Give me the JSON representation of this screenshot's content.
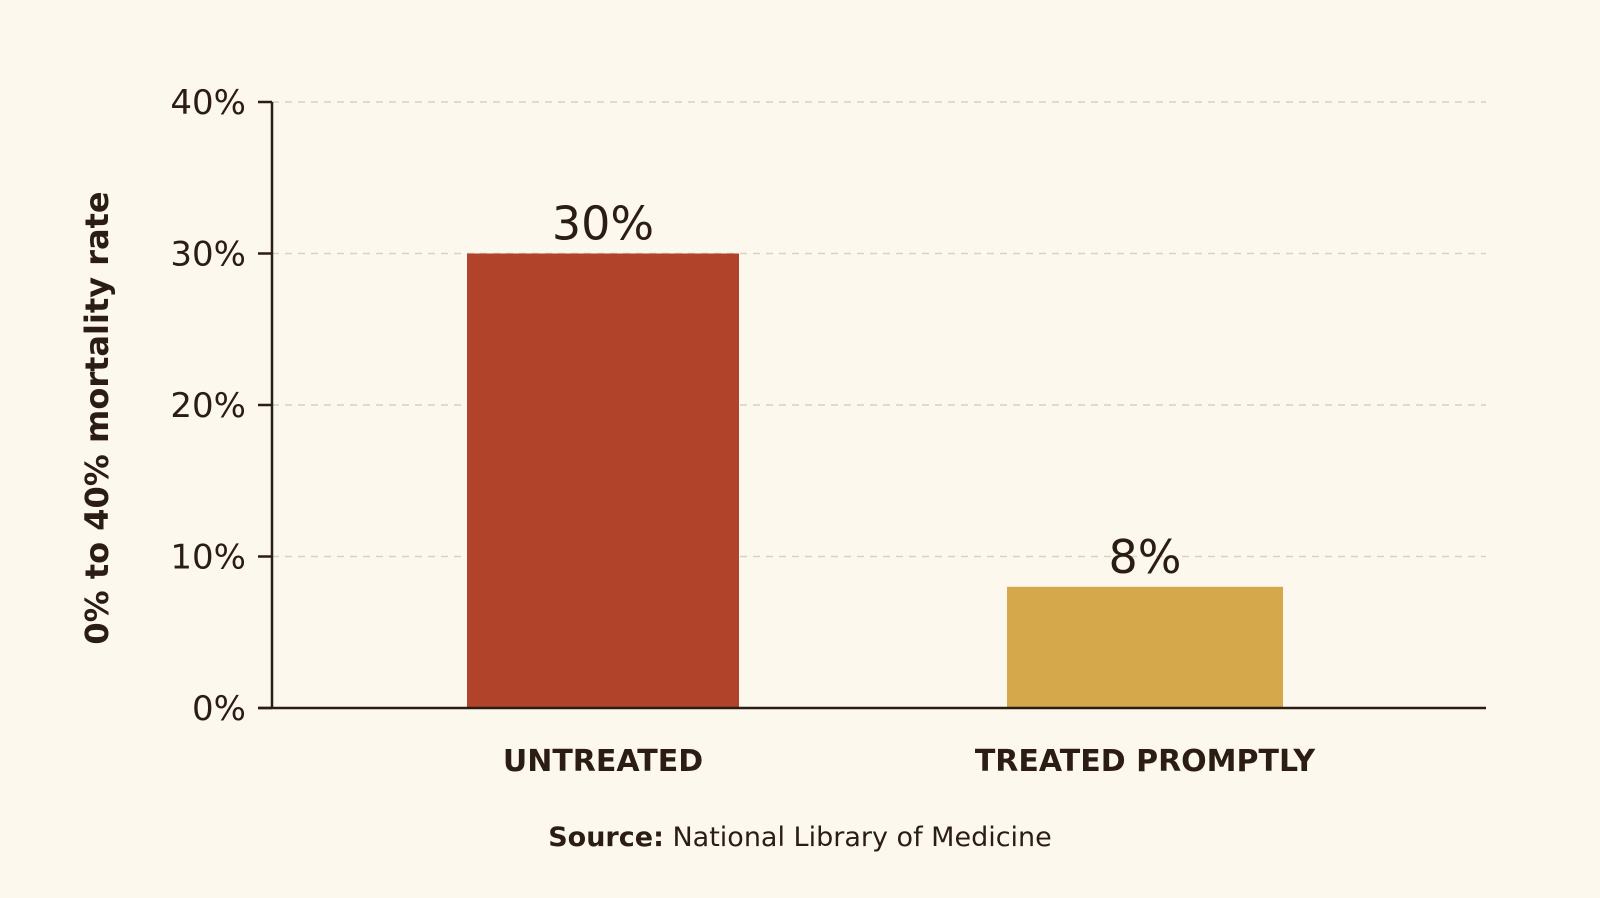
{
  "chart_data": {
    "type": "bar",
    "categories": [
      "UNTREATED",
      "TREATED PROMPTLY"
    ],
    "values": [
      30,
      8
    ],
    "data_labels": [
      "30%",
      "8%"
    ],
    "colors": [
      "#b2432b",
      "#d4a84b"
    ],
    "ylabel": "0% to 40% mortality rate",
    "xlabel": "",
    "title": "",
    "ylim": [
      0,
      40
    ],
    "yticks": [
      0,
      10,
      20,
      30,
      40
    ],
    "ytick_labels": [
      "0%",
      "10%",
      "20%",
      "30%",
      "40%"
    ],
    "grid": true,
    "legend": "none"
  },
  "source": {
    "key": "Source:",
    "value": "National Library of Medicine"
  }
}
